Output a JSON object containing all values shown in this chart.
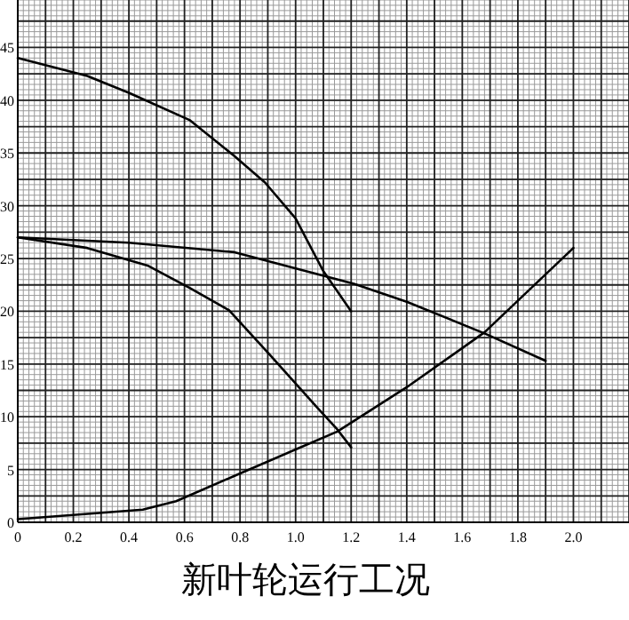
{
  "chart_data": {
    "type": "line",
    "title": "新叶轮运行工况",
    "xlim": [
      0,
      2.2
    ],
    "ylim": [
      0,
      49.5
    ],
    "xticks": [
      0,
      {
        "value": 0.2,
        "label": "0.2"
      },
      {
        "value": 0.4,
        "label": "0.4"
      },
      {
        "value": 0.6,
        "label": "0.6"
      },
      {
        "value": 0.8,
        "label": "0.8"
      },
      {
        "value": 1.0,
        "label": "1.0"
      },
      {
        "value": 1.2,
        "label": "1.2"
      },
      {
        "value": 1.4,
        "label": "1.4"
      },
      {
        "value": 1.6,
        "label": "1.6"
      },
      {
        "value": 1.8,
        "label": "1.8"
      },
      {
        "value": 2.0,
        "label": "2.0"
      }
    ],
    "yticks": [
      0,
      5,
      10,
      15,
      20,
      25,
      30,
      35,
      40,
      45
    ],
    "grid": true,
    "marker": "none",
    "line_style": "solid",
    "series": [
      {
        "color": "#000000",
        "x": [
          0,
          0.25,
          0.4,
          0.62,
          0.78,
          0.89,
          1.0,
          1.1,
          1.2
        ],
        "values": [
          44,
          42.3,
          40.7,
          38.1,
          34.7,
          32.2,
          28.8,
          23.8,
          20.0
        ]
      },
      {
        "color": "#000000",
        "x": [
          0,
          0.4,
          0.78,
          1.21,
          1.4,
          1.68,
          1.9
        ],
        "values": [
          27.0,
          26.5,
          25.6,
          22.6,
          20.9,
          17.9,
          15.3
        ]
      },
      {
        "color": "#000000",
        "x": [
          0,
          0.25,
          0.47,
          0.62,
          0.76,
          0.91,
          1.08,
          1.15,
          1.2
        ],
        "values": [
          27.0,
          26.0,
          24.3,
          22.2,
          20.1,
          15.8,
          10.8,
          8.8,
          7.1
        ]
      },
      {
        "color": "#000000",
        "x": [
          0,
          0.45,
          0.57,
          0.78,
          1.0,
          1.15,
          1.4,
          1.68,
          2.0
        ],
        "values": [
          0.3,
          1.2,
          2.0,
          4.4,
          6.9,
          8.6,
          12.8,
          18.0,
          26.0
        ]
      }
    ]
  }
}
